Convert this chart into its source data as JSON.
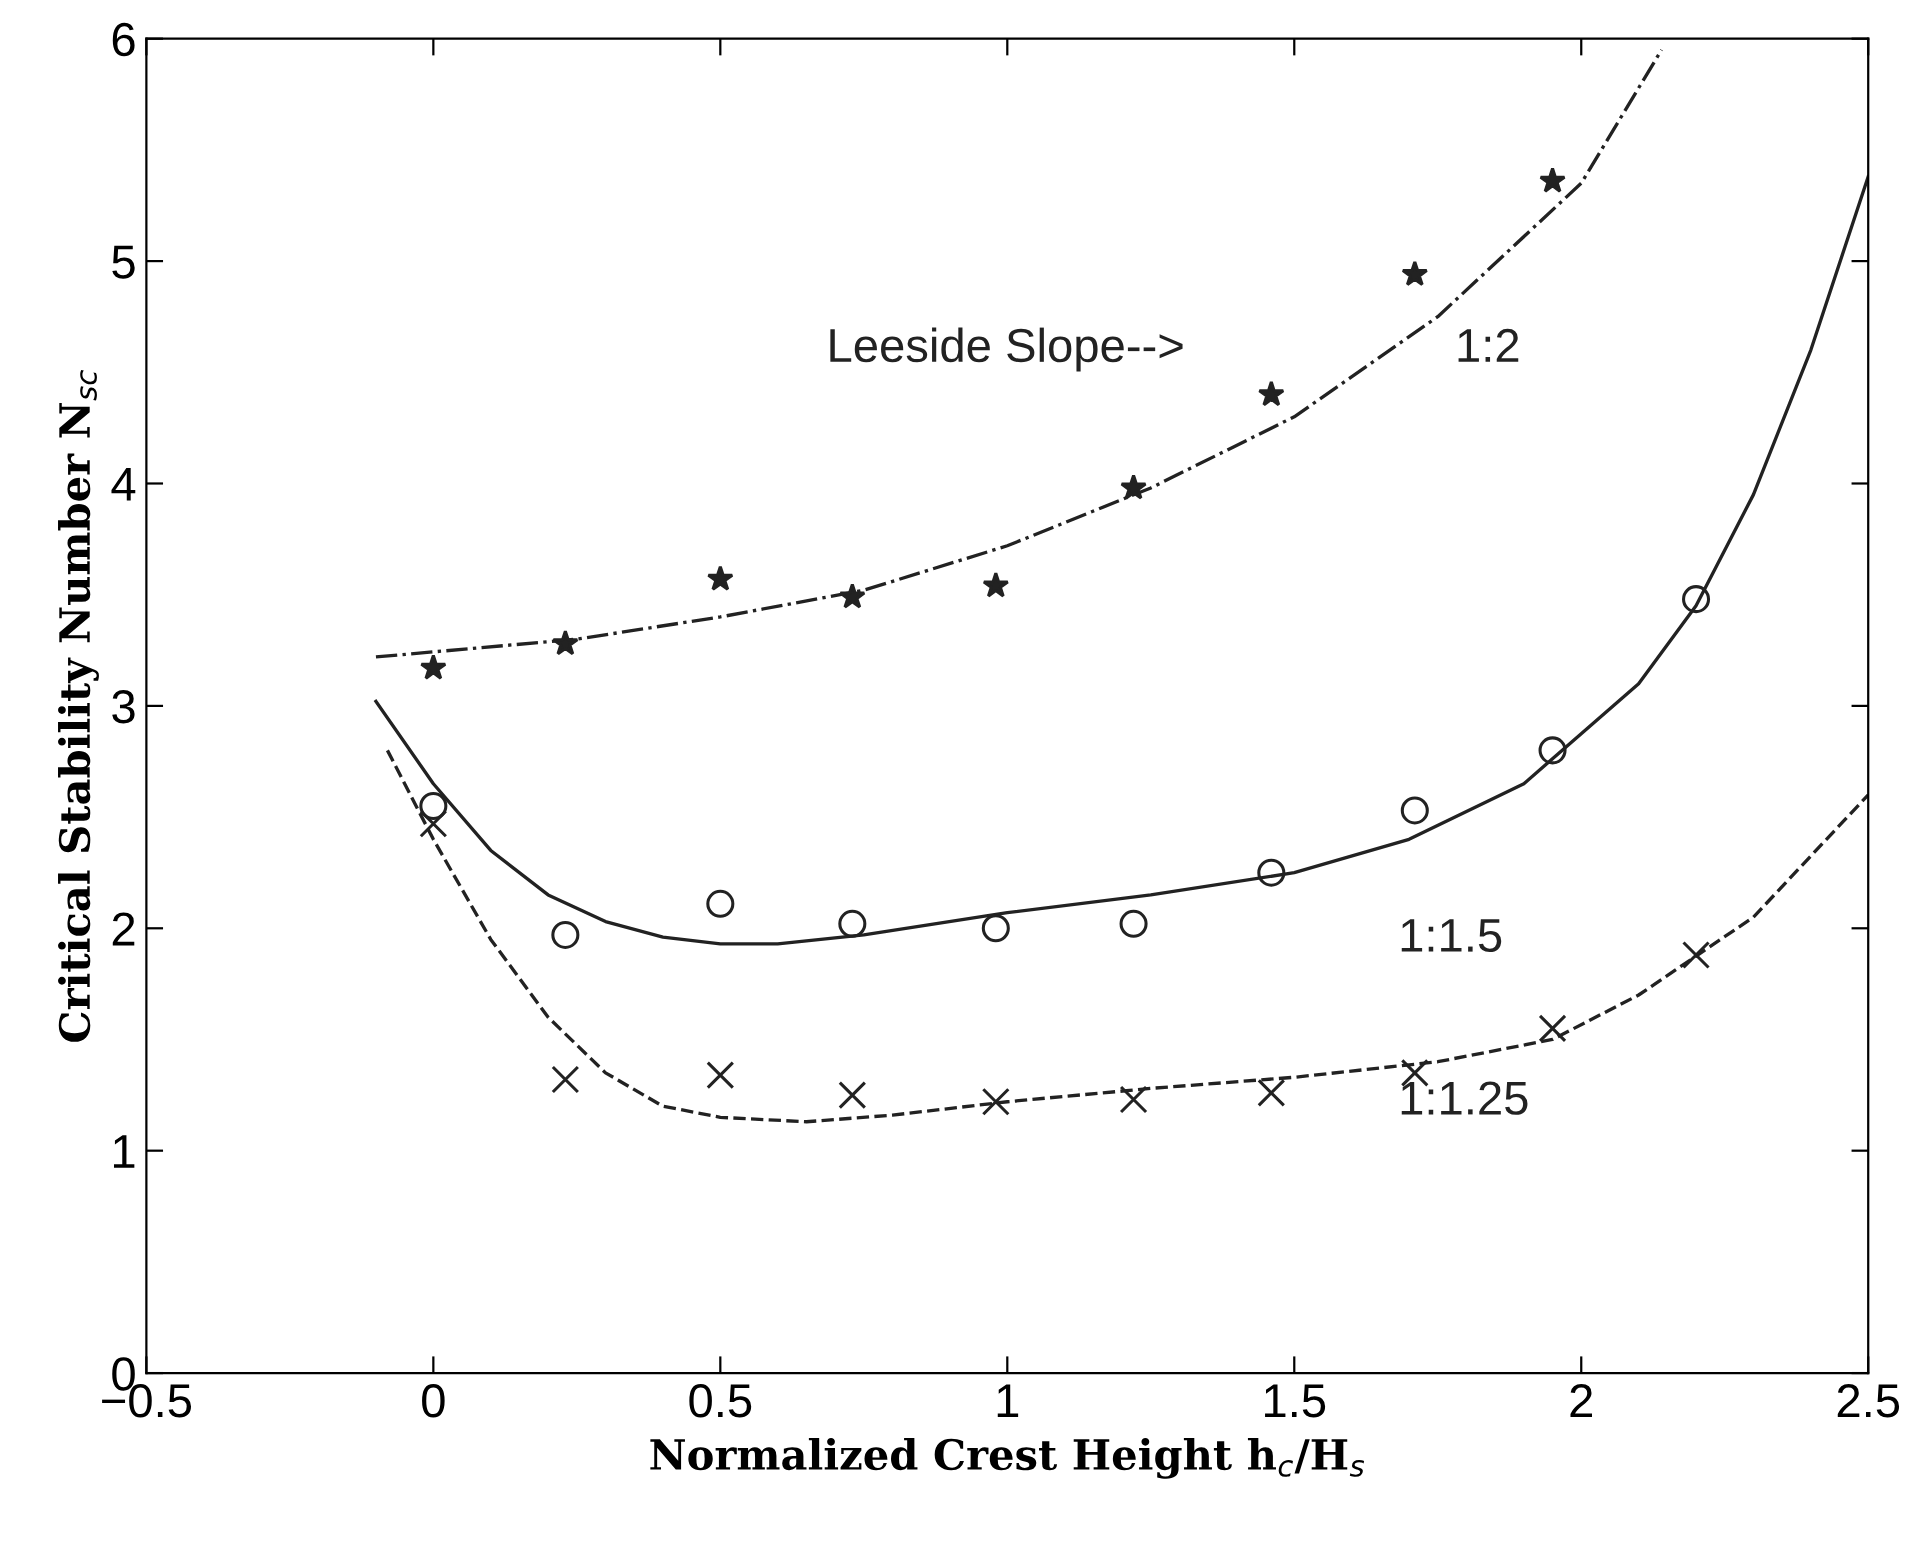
{
  "chart_data": {
    "type": "scatter",
    "xlabel": "Normalized Crest Height h$_{c}$/H$_{s}$",
    "ylabel": "Critical Stability Number N$_{sc}$",
    "xlim": [
      -0.5,
      2.5
    ],
    "ylim": [
      0,
      6
    ],
    "xticks": [
      {
        "value": -0.5,
        "label": "−0.5"
      },
      0,
      0.5,
      1,
      1.5,
      2,
      2.5
    ],
    "yticks": [
      0,
      1,
      2,
      3,
      4,
      5,
      6
    ],
    "grid": false,
    "legend": false,
    "series": [
      {
        "marker": "star",
        "color": "#222222",
        "x": [
          0,
          0.23,
          0.5,
          0.73,
          0.98,
          1.22,
          1.46,
          1.71,
          1.95
        ],
        "values": [
          3.17,
          3.28,
          3.57,
          3.49,
          3.54,
          3.98,
          4.4,
          4.94,
          5.36
        ]
      },
      {
        "marker": "circle",
        "color": "#222222",
        "x": [
          0,
          0.23,
          0.5,
          0.73,
          0.98,
          1.22,
          1.46,
          1.71,
          1.95,
          2.2
        ],
        "values": [
          2.55,
          1.97,
          2.11,
          2.02,
          2.0,
          2.02,
          2.25,
          2.53,
          2.8,
          3.48
        ]
      },
      {
        "marker": "cross",
        "color": "#222222",
        "x": [
          0,
          0.23,
          0.5,
          0.73,
          0.98,
          1.22,
          1.46,
          1.71,
          1.95,
          2.2
        ],
        "values": [
          2.47,
          1.32,
          1.34,
          1.25,
          1.22,
          1.23,
          1.26,
          1.35,
          1.55,
          1.88
        ]
      },
      {
        "type": "line",
        "line_style": "dashdot",
        "color": "#222222",
        "x": [
          -0.1,
          0.25,
          0.5,
          0.75,
          1.0,
          1.25,
          1.5,
          1.75,
          2.0,
          2.14
        ],
        "values": [
          3.22,
          3.3,
          3.4,
          3.52,
          3.72,
          3.98,
          4.3,
          4.75,
          5.35,
          5.95
        ]
      },
      {
        "type": "line",
        "line_style": "solid",
        "color": "#222222",
        "x": [
          -0.1,
          0,
          0.1,
          0.2,
          0.3,
          0.4,
          0.5,
          0.6,
          0.75,
          1.0,
          1.25,
          1.5,
          1.7,
          1.9,
          2.1,
          2.2,
          2.3,
          2.4,
          2.5
        ],
        "values": [
          3.02,
          2.65,
          2.35,
          2.15,
          2.03,
          1.96,
          1.93,
          1.93,
          1.97,
          2.07,
          2.15,
          2.25,
          2.4,
          2.65,
          3.1,
          3.45,
          3.95,
          4.6,
          5.38
        ]
      },
      {
        "type": "line",
        "line_style": "dashed",
        "color": "#222222",
        "x": [
          -0.08,
          0,
          0.1,
          0.2,
          0.3,
          0.4,
          0.5,
          0.65,
          0.8,
          1.0,
          1.25,
          1.5,
          1.75,
          1.95,
          2.1,
          2.3,
          2.5
        ],
        "values": [
          2.8,
          2.4,
          1.95,
          1.6,
          1.35,
          1.2,
          1.15,
          1.13,
          1.16,
          1.22,
          1.28,
          1.33,
          1.4,
          1.5,
          1.7,
          2.05,
          2.6
        ]
      }
    ],
    "annotations": [
      "Leeside Slope-->",
      "1:2",
      "1:1.5",
      "1:1.25"
    ]
  }
}
